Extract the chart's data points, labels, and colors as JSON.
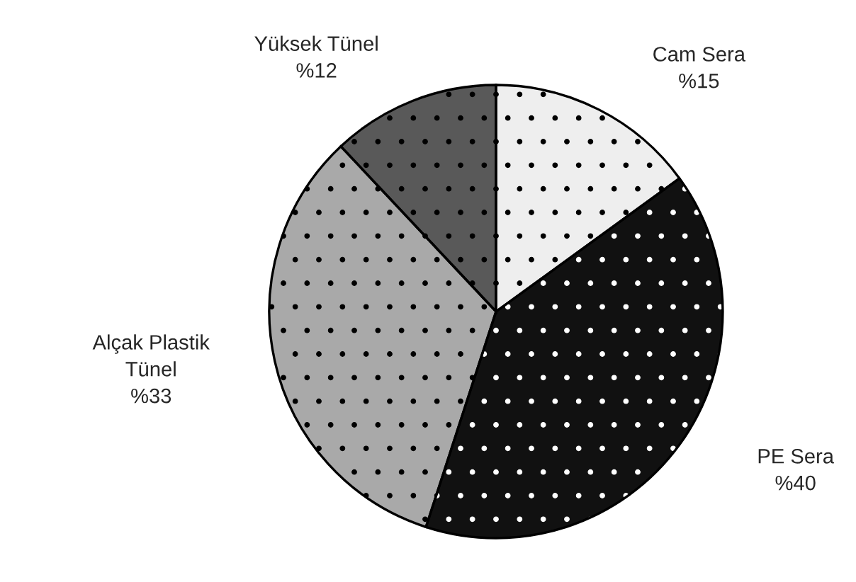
{
  "chart_data": {
    "type": "pie",
    "categories": [
      "Cam Sera",
      "PE Sera",
      "Alçak Plastik Tünel",
      "Yüksek Tünel"
    ],
    "values": [
      15,
      40,
      33,
      12
    ],
    "value_labels": [
      "%15",
      "%40",
      "%33",
      "%12"
    ],
    "colors": [
      "#eeeeee",
      "#111111",
      "#a9a9a9",
      "#595959"
    ],
    "legend": false
  }
}
